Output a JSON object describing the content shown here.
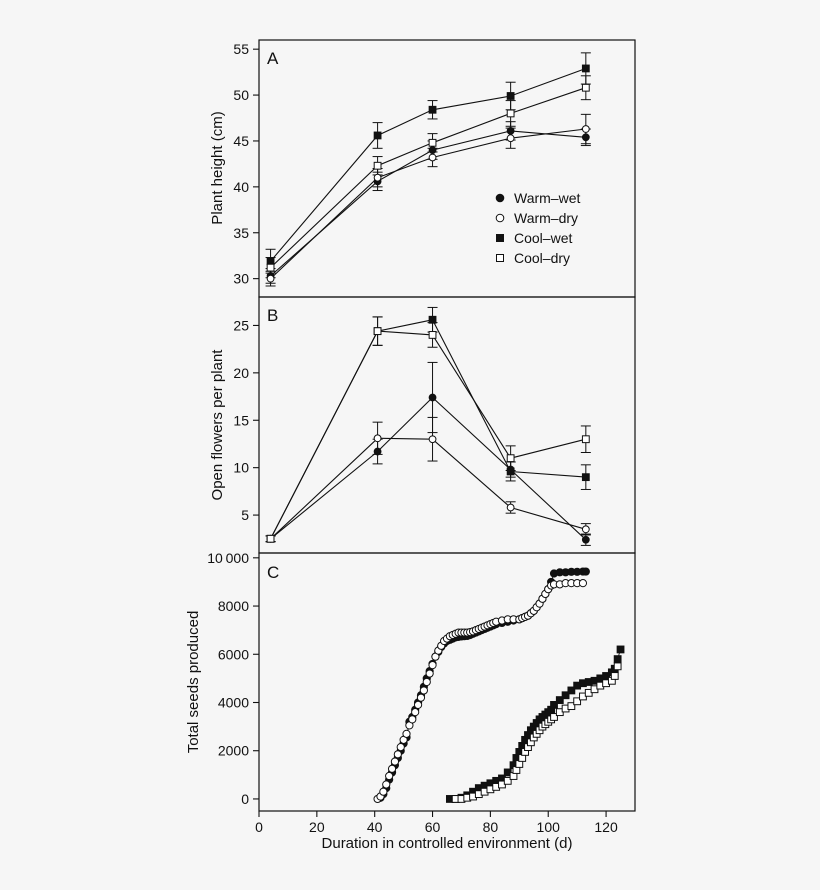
{
  "colors": {
    "background": "#f6f6f6",
    "ink": "#111111",
    "marker_fill_open": "#ffffff"
  },
  "chart_data": [
    {
      "type": "line",
      "panel": "A",
      "ylabel": "Plant height (cm)",
      "xlim": [
        0,
        130
      ],
      "ylim": [
        28,
        56
      ],
      "yticks": [
        30,
        35,
        40,
        45,
        50,
        55
      ],
      "legend": {
        "position": "right",
        "entries": [
          {
            "label": "Warm–wet",
            "marker": "circle",
            "filled": true
          },
          {
            "label": "Warm–dry",
            "marker": "circle",
            "filled": false
          },
          {
            "label": "Cool–wet",
            "marker": "square",
            "filled": true
          },
          {
            "label": "Cool–dry",
            "marker": "square",
            "filled": false
          }
        ]
      },
      "series": [
        {
          "name": "Warm–wet",
          "marker": "circle",
          "filled": true,
          "x": [
            4,
            41,
            60,
            87,
            113
          ],
          "y": [
            30.3,
            40.6,
            44.0,
            46.1,
            45.4
          ],
          "err": [
            0.8,
            1.0,
            1.0,
            1.0,
            0.9
          ]
        },
        {
          "name": "Warm–dry",
          "marker": "circle",
          "filled": false,
          "x": [
            4,
            41,
            60,
            87,
            113
          ],
          "y": [
            30.0,
            41.0,
            43.2,
            45.3,
            46.3
          ],
          "err": [
            0.8,
            1.0,
            1.0,
            1.1,
            1.6
          ]
        },
        {
          "name": "Cool–wet",
          "marker": "square",
          "filled": true,
          "x": [
            4,
            41,
            60,
            87,
            113
          ],
          "y": [
            31.9,
            45.6,
            48.4,
            49.9,
            52.9
          ],
          "err": [
            1.3,
            1.4,
            1.0,
            1.5,
            1.7
          ]
        },
        {
          "name": "Cool–dry",
          "marker": "square",
          "filled": false,
          "x": [
            4,
            41,
            60,
            87,
            113
          ],
          "y": [
            31.2,
            42.3,
            44.8,
            48.0,
            50.8
          ],
          "err": [
            1.1,
            1.0,
            1.0,
            1.4,
            1.3
          ]
        }
      ]
    },
    {
      "type": "line",
      "panel": "B",
      "ylabel": "Open flowers per plant",
      "xlim": [
        0,
        130
      ],
      "ylim": [
        1,
        28
      ],
      "yticks": [
        5,
        10,
        15,
        20,
        25
      ],
      "series": [
        {
          "name": "Warm–wet",
          "marker": "circle",
          "filled": true,
          "x": [
            4,
            41,
            60,
            87,
            113
          ],
          "y": [
            2.5,
            11.7,
            17.4,
            9.8,
            2.4
          ],
          "err": [
            0.3,
            1.3,
            3.7,
            0.8,
            0.6
          ]
        },
        {
          "name": "Warm–dry",
          "marker": "circle",
          "filled": false,
          "x": [
            4,
            41,
            60,
            87,
            113
          ],
          "y": [
            2.5,
            13.1,
            13.0,
            5.8,
            3.5
          ],
          "err": [
            0.3,
            1.7,
            2.3,
            0.6,
            0.6
          ]
        },
        {
          "name": "Cool–wet",
          "marker": "square",
          "filled": true,
          "x": [
            4,
            41,
            60,
            87,
            113
          ],
          "y": [
            2.5,
            24.4,
            25.6,
            9.6,
            9.0
          ],
          "err": [
            0.3,
            1.5,
            1.3,
            1.0,
            1.3
          ]
        },
        {
          "name": "Cool–dry",
          "marker": "square",
          "filled": false,
          "x": [
            4,
            41,
            60,
            87,
            113
          ],
          "y": [
            2.5,
            24.4,
            24.0,
            11.0,
            13.0
          ],
          "err": [
            0.3,
            1.5,
            1.3,
            1.3,
            1.4
          ]
        }
      ]
    },
    {
      "type": "scatter",
      "panel": "C",
      "ylabel": "Total seeds produced",
      "xlabel": "Duration in controlled environment (d)",
      "xlim": [
        0,
        130
      ],
      "ylim": [
        -500,
        10200
      ],
      "xticks": [
        0,
        20,
        40,
        60,
        80,
        100,
        120
      ],
      "yticks": [
        0,
        2000,
        4000,
        6000,
        8000,
        10000
      ],
      "ytick_labels": [
        "0",
        "2000",
        "4000",
        "6000",
        "8000",
        "10 000"
      ],
      "series": [
        {
          "name": "Warm–wet",
          "marker": "circle",
          "filled": true,
          "x": [
            42,
            43,
            44,
            45,
            46,
            47,
            48,
            49,
            50,
            51,
            52,
            53,
            54,
            55,
            56,
            57,
            58,
            59,
            60,
            61,
            62,
            63,
            64,
            65,
            66,
            67,
            68,
            69,
            70,
            71,
            72,
            73,
            74,
            75,
            76,
            77,
            78,
            79,
            80,
            81,
            82,
            84,
            86,
            88,
            90,
            91,
            92,
            93,
            94,
            95,
            96,
            97,
            98,
            99,
            100,
            101,
            102,
            104,
            106,
            108,
            110,
            112,
            113
          ],
          "y": [
            50,
            200,
            450,
            800,
            1100,
            1400,
            1700,
            2000,
            2300,
            2550,
            3200,
            3400,
            3700,
            4000,
            4300,
            4650,
            5000,
            5300,
            5600,
            5900,
            6100,
            6300,
            6450,
            6550,
            6600,
            6650,
            6700,
            6720,
            6740,
            6750,
            6760,
            6800,
            6850,
            6900,
            6950,
            7000,
            7050,
            7100,
            7150,
            7200,
            7250,
            7300,
            7350,
            7400,
            7450,
            7500,
            7550,
            7600,
            7700,
            7800,
            7950,
            8100,
            8300,
            8500,
            8700,
            9000,
            9350,
            9400,
            9400,
            9420,
            9420,
            9430,
            9430
          ]
        },
        {
          "name": "Warm–dry",
          "marker": "circle",
          "filled": false,
          "x": [
            41,
            42,
            43,
            44,
            45,
            46,
            47,
            48,
            49,
            50,
            51,
            52,
            53,
            54,
            55,
            56,
            57,
            58,
            59,
            60,
            61,
            62,
            63,
            64,
            65,
            66,
            67,
            68,
            69,
            70,
            71,
            72,
            73,
            74,
            75,
            76,
            77,
            78,
            79,
            80,
            81,
            82,
            84,
            86,
            88,
            90,
            91,
            92,
            93,
            94,
            95,
            96,
            97,
            98,
            99,
            100,
            101,
            102,
            104,
            106,
            108,
            110,
            112
          ],
          "y": [
            0,
            100,
            300,
            600,
            950,
            1250,
            1550,
            1850,
            2150,
            2450,
            2700,
            3050,
            3300,
            3600,
            3900,
            4200,
            4500,
            4850,
            5200,
            5550,
            5900,
            6150,
            6350,
            6550,
            6650,
            6750,
            6800,
            6850,
            6900,
            6900,
            6900,
            6900,
            6920,
            6950,
            7000,
            7050,
            7100,
            7150,
            7200,
            7250,
            7300,
            7350,
            7400,
            7450,
            7450,
            7450,
            7500,
            7550,
            7600,
            7700,
            7800,
            7950,
            8100,
            8300,
            8500,
            8700,
            8850,
            8900,
            8900,
            8950,
            8950,
            8950,
            8950
          ]
        },
        {
          "name": "Cool–wet",
          "marker": "square",
          "filled": true,
          "x": [
            66,
            68,
            70,
            72,
            74,
            76,
            78,
            80,
            82,
            84,
            86,
            88,
            89,
            90,
            91,
            92,
            93,
            94,
            95,
            96,
            97,
            98,
            99,
            100,
            101,
            102,
            104,
            106,
            108,
            110,
            112,
            114,
            116,
            118,
            120,
            122,
            123,
            124,
            125
          ],
          "y": [
            0,
            0,
            50,
            150,
            300,
            450,
            550,
            650,
            750,
            850,
            1100,
            1400,
            1700,
            1950,
            2200,
            2450,
            2650,
            2850,
            3000,
            3150,
            3300,
            3400,
            3500,
            3600,
            3700,
            3900,
            4100,
            4300,
            4500,
            4700,
            4800,
            4850,
            4900,
            5000,
            5100,
            5250,
            5400,
            5800,
            6200
          ]
        },
        {
          "name": "Cool–dry",
          "marker": "square",
          "filled": false,
          "x": [
            68,
            70,
            72,
            74,
            76,
            78,
            80,
            82,
            84,
            86,
            88,
            89,
            90,
            91,
            92,
            93,
            94,
            95,
            96,
            97,
            98,
            99,
            100,
            101,
            102,
            104,
            106,
            108,
            110,
            112,
            114,
            116,
            118,
            120,
            122,
            123,
            124
          ],
          "y": [
            0,
            0,
            50,
            100,
            200,
            300,
            400,
            500,
            600,
            750,
            950,
            1200,
            1450,
            1700,
            1950,
            2150,
            2350,
            2550,
            2700,
            2850,
            3000,
            3100,
            3200,
            3300,
            3400,
            3600,
            3750,
            3850,
            4050,
            4250,
            4400,
            4550,
            4700,
            4800,
            4900,
            5100,
            5500
          ]
        }
      ]
    }
  ]
}
